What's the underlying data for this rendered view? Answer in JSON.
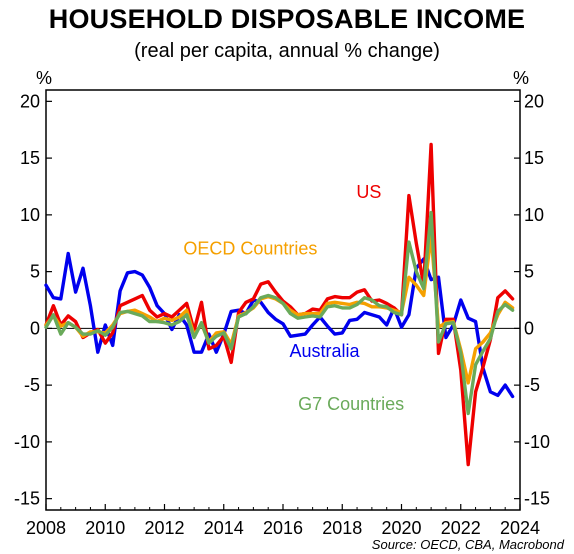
{
  "title": "HOUSEHOLD DISPOSABLE INCOME",
  "subtitle": "(real per capita, annual % change)",
  "source": "Source: OECD, CBA, Macrobond",
  "chart_data": {
    "type": "line",
    "ylabel_left": "%",
    "ylabel_right": "%",
    "xlim": [
      2008,
      2024
    ],
    "ylim": [
      -16,
      21
    ],
    "y_ticks": [
      20,
      15,
      10,
      5,
      0,
      -5,
      -10,
      -15
    ],
    "y_tick_labels": [
      "20",
      "15",
      "10",
      "5",
      "0",
      "-5",
      "-10",
      "-15"
    ],
    "x_ticks": [
      2008,
      2010,
      2012,
      2014,
      2016,
      2018,
      2020,
      2022,
      2024
    ],
    "x_tick_labels": [
      "2008",
      "2010",
      "2012",
      "2014",
      "2016",
      "2018",
      "2020",
      "2022",
      "2024"
    ],
    "grid": false,
    "colors": {
      "Australia": "#0000ee",
      "US": "#ee0000",
      "OECD Countries": "#f5a000",
      "G7 Countries": "#6aaa5a"
    },
    "series": [
      {
        "name": "Australia",
        "points": [
          [
            2008.0,
            3.8
          ],
          [
            2008.25,
            2.7
          ],
          [
            2008.5,
            2.6
          ],
          [
            2008.75,
            6.6
          ],
          [
            2009.0,
            3.2
          ],
          [
            2009.25,
            5.3
          ],
          [
            2009.5,
            2.0
          ],
          [
            2009.75,
            -2.1
          ],
          [
            2010.0,
            0.3
          ],
          [
            2010.25,
            -1.5
          ],
          [
            2010.5,
            3.3
          ],
          [
            2010.75,
            4.9
          ],
          [
            2011.0,
            5.0
          ],
          [
            2011.25,
            4.7
          ],
          [
            2011.5,
            3.6
          ],
          [
            2011.75,
            2.0
          ],
          [
            2012.0,
            1.3
          ],
          [
            2012.25,
            -0.1
          ],
          [
            2012.5,
            1.2
          ],
          [
            2012.75,
            0.3
          ],
          [
            2013.0,
            -2.1
          ],
          [
            2013.25,
            -2.1
          ],
          [
            2013.5,
            -0.5
          ],
          [
            2013.75,
            -2.1
          ],
          [
            2014.0,
            -0.5
          ],
          [
            2014.25,
            1.5
          ],
          [
            2014.5,
            1.6
          ],
          [
            2014.75,
            1.3
          ],
          [
            2015.0,
            2.5
          ],
          [
            2015.25,
            2.3
          ],
          [
            2015.5,
            1.4
          ],
          [
            2015.75,
            0.8
          ],
          [
            2016.0,
            0.4
          ],
          [
            2016.25,
            -0.7
          ],
          [
            2016.5,
            -0.6
          ],
          [
            2016.75,
            -0.5
          ],
          [
            2017.0,
            0.3
          ],
          [
            2017.25,
            1.0
          ],
          [
            2017.5,
            0.2
          ],
          [
            2017.75,
            -0.5
          ],
          [
            2018.0,
            -0.4
          ],
          [
            2018.25,
            0.7
          ],
          [
            2018.5,
            0.8
          ],
          [
            2018.75,
            1.4
          ],
          [
            2019.0,
            1.2
          ],
          [
            2019.25,
            1.0
          ],
          [
            2019.5,
            0.3
          ],
          [
            2019.75,
            1.8
          ],
          [
            2020.0,
            0.1
          ],
          [
            2020.25,
            1.2
          ],
          [
            2020.5,
            5.3
          ],
          [
            2020.75,
            6.1
          ],
          [
            2021.0,
            4.3
          ],
          [
            2021.25,
            4.5
          ],
          [
            2021.5,
            -0.8
          ],
          [
            2021.75,
            0.3
          ],
          [
            2022.0,
            2.5
          ],
          [
            2022.25,
            0.9
          ],
          [
            2022.5,
            0.6
          ],
          [
            2022.75,
            -3.5
          ],
          [
            2023.0,
            -5.6
          ],
          [
            2023.25,
            -5.9
          ],
          [
            2023.5,
            -5.0
          ],
          [
            2023.75,
            -6.0
          ]
        ]
      },
      {
        "name": "US",
        "points": [
          [
            2008.0,
            0.3
          ],
          [
            2008.25,
            2.0
          ],
          [
            2008.5,
            0.3
          ],
          [
            2008.75,
            1.1
          ],
          [
            2009.0,
            0.6
          ],
          [
            2009.25,
            -0.8
          ],
          [
            2009.5,
            -0.4
          ],
          [
            2009.75,
            -0.1
          ],
          [
            2010.0,
            -1.3
          ],
          [
            2010.25,
            -0.4
          ],
          [
            2010.5,
            2.0
          ],
          [
            2010.75,
            2.3
          ],
          [
            2011.0,
            2.6
          ],
          [
            2011.25,
            2.9
          ],
          [
            2011.5,
            1.6
          ],
          [
            2011.75,
            1.0
          ],
          [
            2012.0,
            1.3
          ],
          [
            2012.25,
            1.0
          ],
          [
            2012.5,
            1.6
          ],
          [
            2012.75,
            2.2
          ],
          [
            2013.0,
            -0.2
          ],
          [
            2013.25,
            2.3
          ],
          [
            2013.5,
            -1.8
          ],
          [
            2013.75,
            -1.5
          ],
          [
            2014.0,
            -0.7
          ],
          [
            2014.25,
            -3.0
          ],
          [
            2014.5,
            1.4
          ],
          [
            2014.75,
            2.3
          ],
          [
            2015.0,
            2.6
          ],
          [
            2015.25,
            3.9
          ],
          [
            2015.5,
            4.1
          ],
          [
            2015.75,
            3.2
          ],
          [
            2016.0,
            2.4
          ],
          [
            2016.25,
            1.9
          ],
          [
            2016.5,
            1.2
          ],
          [
            2016.75,
            1.3
          ],
          [
            2017.0,
            1.7
          ],
          [
            2017.25,
            1.6
          ],
          [
            2017.5,
            2.6
          ],
          [
            2017.75,
            2.8
          ],
          [
            2018.0,
            2.7
          ],
          [
            2018.25,
            2.7
          ],
          [
            2018.5,
            3.2
          ],
          [
            2018.75,
            3.4
          ],
          [
            2019.0,
            2.4
          ],
          [
            2019.25,
            2.5
          ],
          [
            2019.5,
            2.2
          ],
          [
            2019.75,
            1.8
          ],
          [
            2020.0,
            1.2
          ],
          [
            2020.25,
            11.7
          ],
          [
            2020.5,
            7.5
          ],
          [
            2020.75,
            3.8
          ],
          [
            2021.0,
            16.2
          ],
          [
            2021.25,
            -2.2
          ],
          [
            2021.5,
            0.8
          ],
          [
            2021.75,
            0.8
          ],
          [
            2022.0,
            -3.7
          ],
          [
            2022.25,
            -12.0
          ],
          [
            2022.5,
            -5.6
          ],
          [
            2022.75,
            -3.4
          ],
          [
            2023.0,
            -1.0
          ],
          [
            2023.25,
            2.7
          ],
          [
            2023.5,
            3.3
          ],
          [
            2023.75,
            2.6
          ]
        ]
      },
      {
        "name": "OECD Countries",
        "points": [
          [
            2008.0,
            0.3
          ],
          [
            2008.25,
            1.1
          ],
          [
            2008.5,
            0.2
          ],
          [
            2008.75,
            0.5
          ],
          [
            2009.0,
            0.1
          ],
          [
            2009.25,
            -0.7
          ],
          [
            2009.5,
            -0.3
          ],
          [
            2009.75,
            -0.3
          ],
          [
            2010.0,
            -0.4
          ],
          [
            2010.25,
            0.3
          ],
          [
            2010.5,
            1.3
          ],
          [
            2010.75,
            1.5
          ],
          [
            2011.0,
            1.6
          ],
          [
            2011.25,
            1.3
          ],
          [
            2011.5,
            1.0
          ],
          [
            2011.75,
            0.6
          ],
          [
            2012.0,
            0.9
          ],
          [
            2012.25,
            0.7
          ],
          [
            2012.5,
            1.0
          ],
          [
            2012.75,
            1.6
          ],
          [
            2013.0,
            -0.6
          ],
          [
            2013.25,
            0.4
          ],
          [
            2013.5,
            -1.2
          ],
          [
            2013.75,
            -0.4
          ],
          [
            2014.0,
            -0.3
          ],
          [
            2014.25,
            -1.4
          ],
          [
            2014.5,
            1.1
          ],
          [
            2014.75,
            1.4
          ],
          [
            2015.0,
            1.8
          ],
          [
            2015.25,
            2.6
          ],
          [
            2015.5,
            2.8
          ],
          [
            2015.75,
            2.6
          ],
          [
            2016.0,
            2.2
          ],
          [
            2016.25,
            1.6
          ],
          [
            2016.5,
            1.2
          ],
          [
            2016.75,
            1.3
          ],
          [
            2017.0,
            1.3
          ],
          [
            2017.25,
            1.3
          ],
          [
            2017.5,
            2.2
          ],
          [
            2017.75,
            2.3
          ],
          [
            2018.0,
            2.2
          ],
          [
            2018.25,
            2.1
          ],
          [
            2018.5,
            2.3
          ],
          [
            2018.75,
            2.2
          ],
          [
            2019.0,
            1.9
          ],
          [
            2019.25,
            1.9
          ],
          [
            2019.5,
            1.8
          ],
          [
            2019.75,
            1.6
          ],
          [
            2020.0,
            1.4
          ],
          [
            2020.25,
            4.5
          ],
          [
            2020.5,
            3.8
          ],
          [
            2020.75,
            2.9
          ],
          [
            2021.0,
            8.2
          ],
          [
            2021.25,
            0.1
          ],
          [
            2021.5,
            0.5
          ],
          [
            2021.75,
            0.6
          ],
          [
            2022.0,
            -1.9
          ],
          [
            2022.25,
            -4.8
          ],
          [
            2022.5,
            -1.8
          ],
          [
            2022.75,
            -1.2
          ],
          [
            2023.0,
            -0.4
          ],
          [
            2023.25,
            1.2
          ],
          [
            2023.5,
            2.3
          ],
          [
            2023.75,
            1.8
          ]
        ]
      },
      {
        "name": "G7 Countries",
        "points": [
          [
            2008.0,
            0.1
          ],
          [
            2008.25,
            1.2
          ],
          [
            2008.5,
            -0.5
          ],
          [
            2008.75,
            0.5
          ],
          [
            2009.0,
            0.1
          ],
          [
            2009.25,
            -0.5
          ],
          [
            2009.5,
            -0.5
          ],
          [
            2009.75,
            -0.2
          ],
          [
            2010.0,
            -0.6
          ],
          [
            2010.25,
            0.1
          ],
          [
            2010.5,
            1.4
          ],
          [
            2010.75,
            1.5
          ],
          [
            2011.0,
            1.3
          ],
          [
            2011.25,
            1.1
          ],
          [
            2011.5,
            0.6
          ],
          [
            2011.75,
            0.6
          ],
          [
            2012.0,
            0.5
          ],
          [
            2012.25,
            0.3
          ],
          [
            2012.5,
            0.6
          ],
          [
            2012.75,
            1.2
          ],
          [
            2013.0,
            -0.8
          ],
          [
            2013.25,
            0.5
          ],
          [
            2013.5,
            -1.3
          ],
          [
            2013.75,
            -0.7
          ],
          [
            2014.0,
            -0.4
          ],
          [
            2014.25,
            -1.8
          ],
          [
            2014.5,
            1.0
          ],
          [
            2014.75,
            1.3
          ],
          [
            2015.0,
            1.9
          ],
          [
            2015.25,
            2.7
          ],
          [
            2015.5,
            2.9
          ],
          [
            2015.75,
            2.7
          ],
          [
            2016.0,
            2.2
          ],
          [
            2016.25,
            1.3
          ],
          [
            2016.5,
            0.9
          ],
          [
            2016.75,
            1.0
          ],
          [
            2017.0,
            1.1
          ],
          [
            2017.25,
            1.0
          ],
          [
            2017.5,
            1.9
          ],
          [
            2017.75,
            2.0
          ],
          [
            2018.0,
            1.8
          ],
          [
            2018.25,
            1.8
          ],
          [
            2018.5,
            2.1
          ],
          [
            2018.75,
            2.7
          ],
          [
            2019.0,
            2.5
          ],
          [
            2019.25,
            2.0
          ],
          [
            2019.5,
            1.9
          ],
          [
            2019.75,
            1.4
          ],
          [
            2020.0,
            1.2
          ],
          [
            2020.25,
            7.6
          ],
          [
            2020.5,
            5.0
          ],
          [
            2020.75,
            3.5
          ],
          [
            2021.0,
            10.2
          ],
          [
            2021.25,
            -1.2
          ],
          [
            2021.5,
            0.4
          ],
          [
            2021.75,
            0.5
          ],
          [
            2022.0,
            -2.2
          ],
          [
            2022.25,
            -7.5
          ],
          [
            2022.5,
            -3.2
          ],
          [
            2022.75,
            -2.0
          ],
          [
            2023.0,
            -0.9
          ],
          [
            2023.25,
            1.5
          ],
          [
            2023.5,
            2.1
          ],
          [
            2023.75,
            1.6
          ]
        ]
      }
    ],
    "annotations": [
      {
        "text": "US",
        "series": "US",
        "x": 2018.9,
        "y": 11.5
      },
      {
        "text": "OECD Countries",
        "series": "OECD Countries",
        "x": 2014.9,
        "y": 6.5
      },
      {
        "text": "Australia",
        "series": "Australia",
        "x": 2017.4,
        "y": -2.5
      },
      {
        "text": "G7 Countries",
        "series": "G7 Countries",
        "x": 2018.3,
        "y": -7.2
      }
    ]
  }
}
